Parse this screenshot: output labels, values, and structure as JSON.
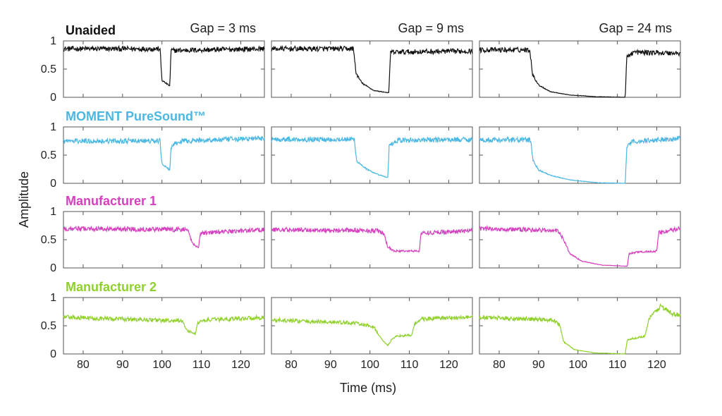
{
  "chart_data": {
    "type": "line",
    "ylabel": "Amplitude",
    "xlabel": "Time (ms)",
    "xlim": [
      75,
      126
    ],
    "ylim": [
      0,
      1
    ],
    "x_ticks": [
      80,
      90,
      100,
      110,
      120
    ],
    "x_tick_labels": [
      "80",
      "90",
      "100",
      "110",
      "120"
    ],
    "y_ticks": [
      0,
      0.5,
      1
    ],
    "y_tick_labels": [
      "0",
      "0.5",
      "1"
    ],
    "columns": [
      {
        "label": "Gap = 3 ms",
        "gap_start": 100,
        "gap_end": 103
      },
      {
        "label": "Gap = 9 ms",
        "gap_start": 96,
        "gap_end": 105
      },
      {
        "label": "Gap = 24 ms",
        "gap_start": 88,
        "gap_end": 112
      }
    ],
    "rows": [
      {
        "title": "Unaided",
        "color": "#111111",
        "panels": [
          {
            "points": [
              [
                75,
                0.86
              ],
              [
                99.5,
                0.86
              ],
              [
                100,
                0.3
              ],
              [
                102,
                0.2
              ],
              [
                102.3,
                0.83
              ],
              [
                126,
                0.86
              ]
            ]
          },
          {
            "points": [
              [
                75,
                0.86
              ],
              [
                95.8,
                0.86
              ],
              [
                96.5,
                0.42
              ],
              [
                98,
                0.25
              ],
              [
                101,
                0.12
              ],
              [
                104.8,
                0.08
              ],
              [
                105.2,
                0.8
              ],
              [
                126,
                0.82
              ]
            ]
          },
          {
            "points": [
              [
                75,
                0.84
              ],
              [
                87.8,
                0.84
              ],
              [
                88.5,
                0.4
              ],
              [
                90,
                0.22
              ],
              [
                93,
                0.1
              ],
              [
                98,
                0.04
              ],
              [
                105,
                0.01
              ],
              [
                112,
                0.0
              ],
              [
                112.4,
                0.72
              ],
              [
                114,
                0.8
              ],
              [
                126,
                0.78
              ]
            ]
          }
        ]
      },
      {
        "title": "MOMENT PureSound™",
        "color": "#4bb8e3",
        "panels": [
          {
            "points": [
              [
                75,
                0.75
              ],
              [
                99.5,
                0.75
              ],
              [
                100,
                0.35
              ],
              [
                102,
                0.23
              ],
              [
                102.3,
                0.65
              ],
              [
                105,
                0.75
              ],
              [
                126,
                0.8
              ]
            ]
          },
          {
            "points": [
              [
                75,
                0.78
              ],
              [
                96,
                0.78
              ],
              [
                96.6,
                0.4
              ],
              [
                99,
                0.26
              ],
              [
                101,
                0.18
              ],
              [
                104.5,
                0.1
              ],
              [
                104.9,
                0.68
              ],
              [
                107,
                0.76
              ],
              [
                126,
                0.78
              ]
            ]
          },
          {
            "points": [
              [
                75,
                0.77
              ],
              [
                88,
                0.77
              ],
              [
                88.6,
                0.4
              ],
              [
                90,
                0.24
              ],
              [
                93,
                0.14
              ],
              [
                98,
                0.06
              ],
              [
                105,
                0.01
              ],
              [
                112,
                0.0
              ],
              [
                112.4,
                0.65
              ],
              [
                114,
                0.74
              ],
              [
                126,
                0.8
              ]
            ]
          }
        ]
      },
      {
        "title": "Manufacturer 1",
        "color": "#d63fbf",
        "panels": [
          {
            "points": [
              [
                75,
                0.7
              ],
              [
                106.5,
                0.68
              ],
              [
                107.5,
                0.48
              ],
              [
                108.5,
                0.38
              ],
              [
                109.3,
                0.38
              ],
              [
                109.8,
                0.62
              ],
              [
                126,
                0.68
              ]
            ]
          },
          {
            "points": [
              [
                75,
                0.68
              ],
              [
                102,
                0.66
              ],
              [
                103.5,
                0.6
              ],
              [
                104.5,
                0.38
              ],
              [
                106,
                0.3
              ],
              [
                112.5,
                0.3
              ],
              [
                113,
                0.62
              ],
              [
                126,
                0.66
              ]
            ]
          },
          {
            "points": [
              [
                75,
                0.7
              ],
              [
                95,
                0.66
              ],
              [
                96.5,
                0.48
              ],
              [
                98,
                0.25
              ],
              [
                101,
                0.12
              ],
              [
                106,
                0.05
              ],
              [
                112.5,
                0.03
              ],
              [
                113,
                0.25
              ],
              [
                115,
                0.28
              ],
              [
                120,
                0.3
              ],
              [
                120.5,
                0.62
              ],
              [
                126,
                0.7
              ]
            ]
          }
        ]
      },
      {
        "title": "Manufacturer 2",
        "color": "#8fd12a",
        "panels": [
          {
            "points": [
              [
                75,
                0.65
              ],
              [
                99,
                0.6
              ],
              [
                103,
                0.58
              ],
              [
                105,
                0.6
              ],
              [
                106.3,
                0.42
              ],
              [
                108.5,
                0.35
              ],
              [
                109,
                0.55
              ],
              [
                111,
                0.6
              ],
              [
                126,
                0.65
              ]
            ]
          },
          {
            "points": [
              [
                75,
                0.6
              ],
              [
                96,
                0.55
              ],
              [
                101,
                0.48
              ],
              [
                102.5,
                0.3
              ],
              [
                104.5,
                0.15
              ],
              [
                105.5,
                0.25
              ],
              [
                107,
                0.32
              ],
              [
                110.5,
                0.33
              ],
              [
                111.5,
                0.55
              ],
              [
                113,
                0.62
              ],
              [
                126,
                0.65
              ]
            ]
          },
          {
            "points": [
              [
                75,
                0.65
              ],
              [
                94,
                0.6
              ],
              [
                95.5,
                0.5
              ],
              [
                96.3,
                0.22
              ],
              [
                99,
                0.08
              ],
              [
                104,
                0.02
              ],
              [
                112,
                0.0
              ],
              [
                112.5,
                0.25
              ],
              [
                117,
                0.32
              ],
              [
                118,
                0.62
              ],
              [
                121,
                0.85
              ],
              [
                124,
                0.7
              ],
              [
                126,
                0.7
              ]
            ]
          }
        ]
      }
    ]
  }
}
